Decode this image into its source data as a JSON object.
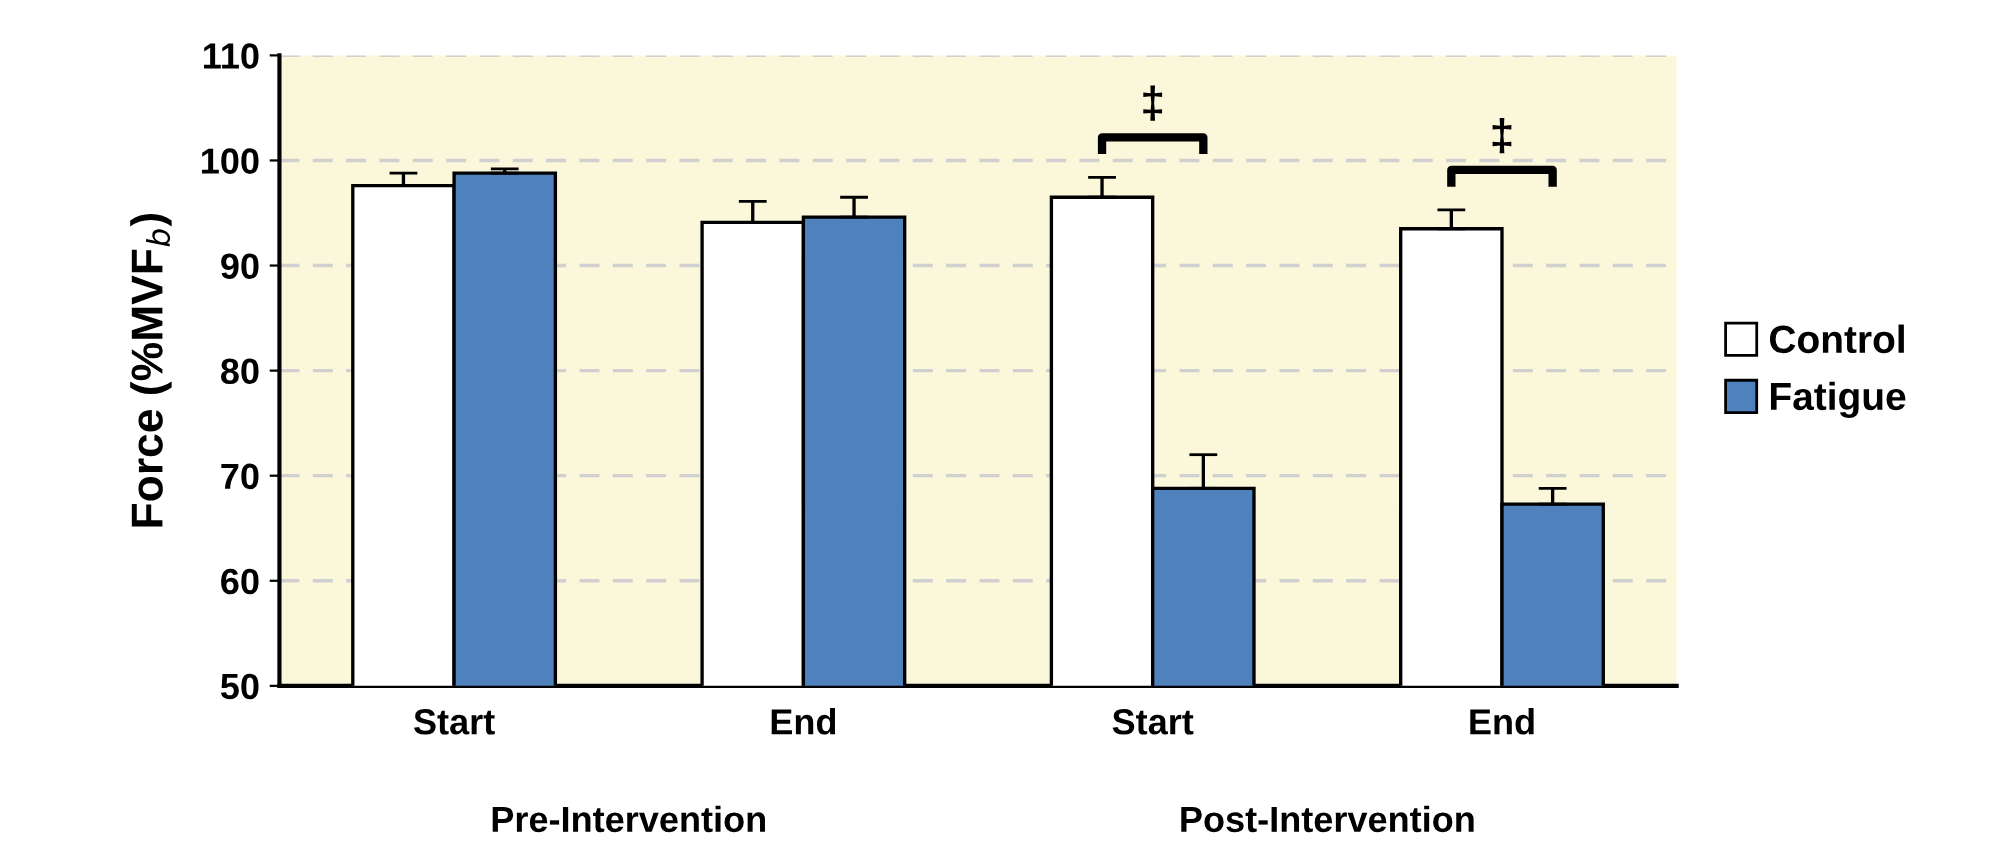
{
  "chart_data": {
    "type": "bar",
    "ylabel": "Force (%MVF$_{b}$)",
    "categories": [
      "Start",
      "End",
      "Start",
      "End"
    ],
    "series": [
      {
        "name": "Control",
        "color": "#ffffff",
        "values": [
          97.6,
          94.1,
          96.5,
          93.5
        ],
        "errors": [
          [
            97.6,
            98.8
          ],
          [
            94.1,
            96.1
          ],
          [
            96.5,
            98.4
          ],
          [
            93.5,
            95.3
          ]
        ]
      },
      {
        "name": "Fatigue",
        "color": "#4f81bd",
        "values": [
          98.8,
          94.6,
          68.8,
          67.3
        ],
        "errors": [
          [
            98.8,
            99.2
          ],
          [
            94.6,
            96.5
          ],
          [
            68.8,
            72.0
          ],
          [
            67.3,
            68.8
          ]
        ]
      }
    ],
    "ylim": [
      50,
      110
    ],
    "yticks": [
      50,
      60,
      70,
      80,
      90,
      100,
      110
    ],
    "grid": "y",
    "legend": "right",
    "annotations": [
      "Pre-Intervention",
      "Post-Intervention",
      "‡",
      "‡"
    ]
  }
}
